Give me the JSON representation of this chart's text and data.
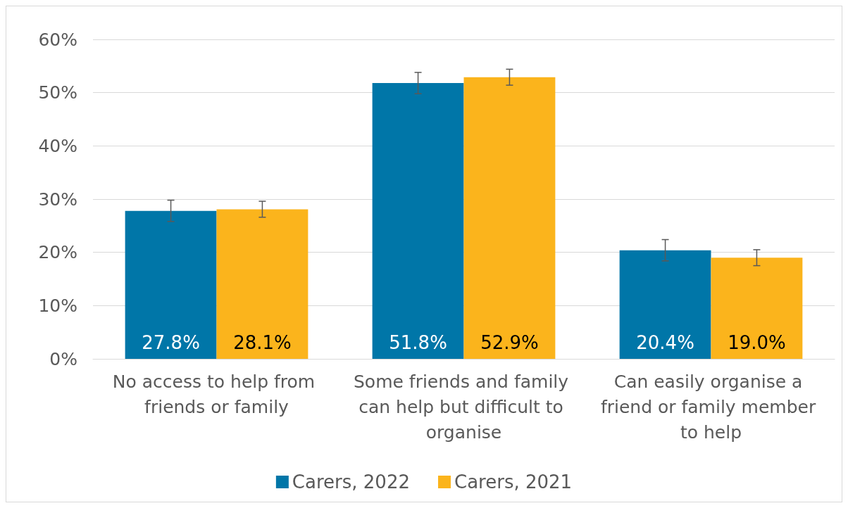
{
  "chart_data": {
    "type": "bar",
    "categories": [
      "No access to help from friends or family",
      "Some friends and family can help but difficult to organise",
      "Can easily organise a friend or family member to help"
    ],
    "series": [
      {
        "name": "Carers, 2022",
        "color": "#0076a8",
        "values": [
          27.8,
          51.8,
          20.4
        ],
        "errors": [
          2.0,
          2.0,
          2.0
        ],
        "value_labels": [
          "27.8%",
          "51.8%",
          "20.4%"
        ]
      },
      {
        "name": "Carers, 2021",
        "color": "#fbb41c",
        "values": [
          28.1,
          52.9,
          19.0
        ],
        "errors": [
          1.5,
          1.5,
          1.5
        ],
        "value_labels": [
          "28.1%",
          "52.9%",
          "19.0%"
        ]
      }
    ],
    "ylim": [
      0,
      60
    ],
    "yticks": [
      {
        "value": 0,
        "label": "0%"
      },
      {
        "value": 10,
        "label": "10%"
      },
      {
        "value": 20,
        "label": "20%"
      },
      {
        "value": 30,
        "label": "30%"
      },
      {
        "value": 40,
        "label": "40%"
      },
      {
        "value": 50,
        "label": "50%"
      },
      {
        "value": 60,
        "label": "60%"
      }
    ],
    "grid": "y",
    "legend": "bottom"
  }
}
